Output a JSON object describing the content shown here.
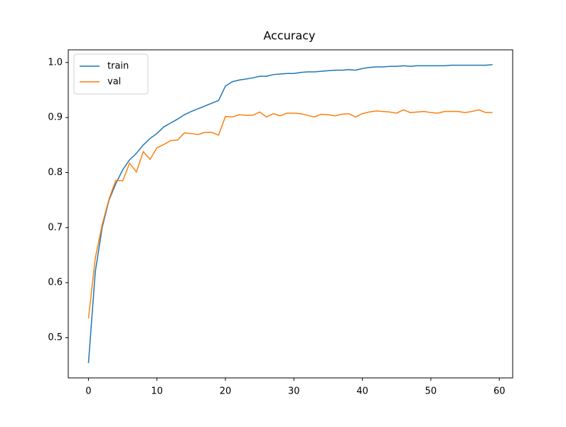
{
  "chart_data": {
    "type": "line",
    "title": "Accuracy",
    "x": [
      0,
      1,
      2,
      3,
      4,
      5,
      6,
      7,
      8,
      9,
      10,
      11,
      12,
      13,
      14,
      15,
      16,
      17,
      18,
      19,
      20,
      21,
      22,
      23,
      24,
      25,
      26,
      27,
      28,
      29,
      30,
      31,
      32,
      33,
      34,
      35,
      36,
      37,
      38,
      39,
      40,
      41,
      42,
      43,
      44,
      45,
      46,
      47,
      48,
      49,
      50,
      51,
      52,
      53,
      54,
      55,
      56,
      57,
      58,
      59
    ],
    "series": [
      {
        "name": "train",
        "color": "#1f77b4",
        "values": [
          0.454,
          0.62,
          0.7,
          0.75,
          0.78,
          0.805,
          0.823,
          0.835,
          0.85,
          0.862,
          0.871,
          0.883,
          0.89,
          0.897,
          0.905,
          0.911,
          0.916,
          0.921,
          0.926,
          0.931,
          0.957,
          0.965,
          0.968,
          0.97,
          0.972,
          0.975,
          0.975,
          0.978,
          0.979,
          0.98,
          0.98,
          0.982,
          0.983,
          0.983,
          0.984,
          0.985,
          0.986,
          0.986,
          0.987,
          0.986,
          0.989,
          0.991,
          0.992,
          0.992,
          0.993,
          0.993,
          0.994,
          0.993,
          0.994,
          0.994,
          0.994,
          0.994,
          0.994,
          0.995,
          0.995,
          0.995,
          0.995,
          0.995,
          0.995,
          0.996
        ]
      },
      {
        "name": "val",
        "color": "#ff7f0e",
        "values": [
          0.535,
          0.645,
          0.705,
          0.752,
          0.786,
          0.785,
          0.817,
          0.801,
          0.838,
          0.824,
          0.845,
          0.851,
          0.858,
          0.859,
          0.872,
          0.871,
          0.869,
          0.873,
          0.873,
          0.868,
          0.902,
          0.901,
          0.905,
          0.904,
          0.904,
          0.91,
          0.901,
          0.907,
          0.903,
          0.908,
          0.908,
          0.907,
          0.904,
          0.901,
          0.906,
          0.905,
          0.903,
          0.906,
          0.907,
          0.901,
          0.907,
          0.91,
          0.912,
          0.911,
          0.91,
          0.908,
          0.914,
          0.909,
          0.91,
          0.911,
          0.909,
          0.908,
          0.911,
          0.911,
          0.911,
          0.909,
          0.911,
          0.914,
          0.909,
          0.909
        ]
      }
    ],
    "xlim": [
      -2.95,
      61.95
    ],
    "xticks": [
      0,
      10,
      20,
      30,
      40,
      50,
      60
    ],
    "ylim": [
      0.427,
      1.023
    ],
    "yticks": [
      0.5,
      0.6,
      0.7,
      0.8,
      0.9,
      {
        "value": 1,
        "label": "1.0"
      }
    ],
    "legend": "upper left",
    "grid": false
  }
}
